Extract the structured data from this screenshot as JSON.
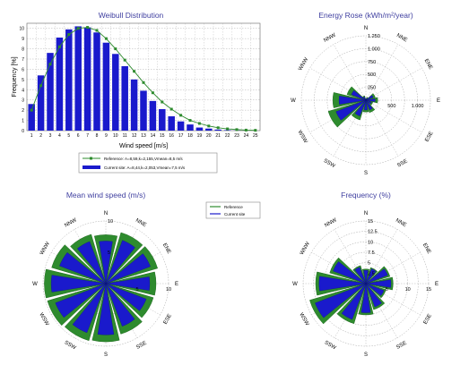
{
  "colors": {
    "title": "#4040a0",
    "green": "#2e8b2e",
    "green_dark": "#0f5a0f",
    "blue": "#1a1acc",
    "grid": "#a0a0a0"
  },
  "chart_data": [
    {
      "type": "bar",
      "title": "Weibull Distribution",
      "xlabel": "Wind speed [m/s]",
      "ylabel": "Frequency [%]",
      "categories": [
        "1",
        "2",
        "3",
        "4",
        "5",
        "6",
        "7",
        "8",
        "9",
        "10",
        "11",
        "12",
        "13",
        "14",
        "15",
        "16",
        "17",
        "18",
        "19",
        "20",
        "21",
        "22",
        "23",
        "24",
        "25"
      ],
      "ylim": [
        0,
        10.5
      ],
      "yticks": [
        "0",
        "1",
        "2",
        "3",
        "4",
        "5",
        "6",
        "7",
        "8",
        "9",
        "10"
      ],
      "grid": true,
      "series": [
        {
          "name": "Current site: A=8,44,k=2,053,Vmean=7,5 m/s",
          "style": "bar",
          "values": [
            2.6,
            5.4,
            7.6,
            9.1,
            9.9,
            10.2,
            10.1,
            9.6,
            8.6,
            7.5,
            6.3,
            5.0,
            3.9,
            2.9,
            2.1,
            1.4,
            0.9,
            0.6,
            0.3,
            0.2,
            0.1,
            0.05,
            0.02,
            0.01,
            0.0
          ]
        },
        {
          "name": "Reference: A=8,59,k=2,155,Vmean=8,5 m/s",
          "style": "line",
          "values": [
            2.0,
            4.4,
            6.5,
            8.2,
            9.4,
            10.0,
            10.1,
            9.8,
            9.0,
            8.0,
            6.9,
            5.8,
            4.7,
            3.7,
            2.8,
            2.1,
            1.5,
            1.0,
            0.7,
            0.45,
            0.28,
            0.17,
            0.1,
            0.05,
            0.03
          ]
        }
      ]
    },
    {
      "type": "rose",
      "title": "Energy Rose (kWh/m²/year)",
      "directions": [
        "N",
        "NNE",
        "ENE",
        "E",
        "ESE",
        "SSE",
        "S",
        "SSW",
        "WSW",
        "W",
        "WNW",
        "NNW"
      ],
      "ring_labels": [
        "250",
        "500",
        "750",
        "1.000",
        "1.250"
      ],
      "axis_labels": [
        "500",
        "1.000"
      ],
      "max": 1250,
      "series": [
        {
          "name": "Reference",
          "values": [
            30,
            60,
            190,
            230,
            140,
            250,
            230,
            400,
            760,
            640,
            380,
            90
          ]
        },
        {
          "name": "Current site",
          "values": [
            20,
            40,
            150,
            180,
            110,
            200,
            190,
            330,
            620,
            520,
            300,
            70
          ]
        }
      ]
    },
    {
      "type": "rose",
      "title": "Mean wind speed (m/s)",
      "directions": [
        "N",
        "NNE",
        "ENE",
        "E",
        "ESE",
        "SSE",
        "S",
        "SSW",
        "WSW",
        "W",
        "WNW",
        "NNW"
      ],
      "ring_labels": [
        "5",
        "10"
      ],
      "axis_labels": [
        "5",
        "10"
      ],
      "max": 10,
      "series": [
        {
          "name": "Reference",
          "values": [
            7.8,
            8.5,
            8.6,
            8.0,
            7.9,
            8.4,
            9.3,
            9.5,
            9.7,
            9.8,
            9.0,
            8.2
          ]
        },
        {
          "name": "Current site",
          "values": [
            6.8,
            7.4,
            7.6,
            7.0,
            6.9,
            7.3,
            8.2,
            8.4,
            8.6,
            8.7,
            7.9,
            7.2
          ]
        }
      ]
    },
    {
      "type": "rose",
      "title": "Frequency (%)",
      "directions": [
        "N",
        "NNE",
        "ENE",
        "E",
        "ESE",
        "SSE",
        "S",
        "SSW",
        "WSW",
        "W",
        "WNW",
        "NNW"
      ],
      "ring_labels": [
        "2.5",
        "5",
        "7.5",
        "10",
        "12.5",
        "15"
      ],
      "axis_labels": [
        "5",
        "10",
        "15"
      ],
      "max": 15,
      "series": [
        {
          "name": "Reference",
          "values": [
            3.5,
            4.0,
            6.0,
            6.5,
            5.0,
            6.5,
            7.5,
            10.0,
            14.0,
            12.0,
            9.0,
            4.5
          ]
        },
        {
          "name": "Current site",
          "values": [
            3.2,
            3.8,
            5.6,
            6.0,
            4.6,
            6.0,
            7.0,
            9.2,
            13.0,
            11.2,
            8.4,
            4.2
          ]
        }
      ]
    }
  ],
  "rose_legend": {
    "reference_label": "Reference",
    "current_label": "Current site"
  }
}
